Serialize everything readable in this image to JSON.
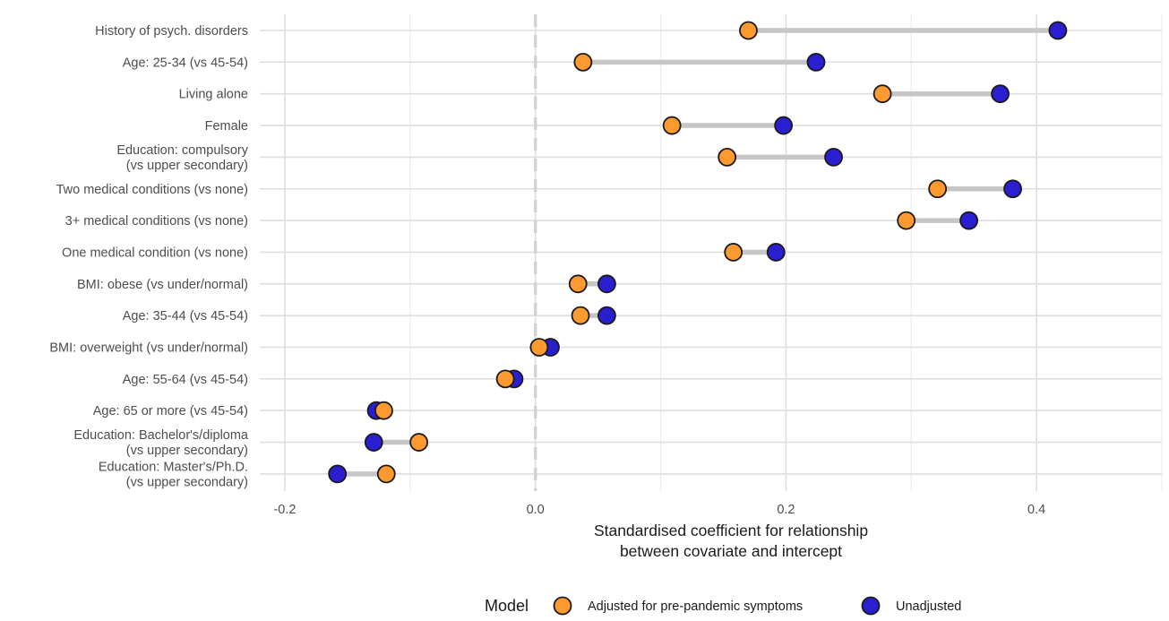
{
  "chart_data": {
    "type": "dumbbell",
    "xlabel": [
      "Standardised coefficient for relationship",
      "between covariate and intercept"
    ],
    "ylabel": "",
    "xlim": [
      -0.22,
      0.5
    ],
    "x_ticks": [
      -0.2,
      0.0,
      0.2,
      0.4
    ],
    "x_tick_labels": [
      "-0.2",
      "0.0",
      "0.2",
      "0.4"
    ],
    "reference_line_x": 0.0,
    "grid": true,
    "categories": [
      [
        "History of psych. disorders"
      ],
      [
        "Age: 25-34 (vs 45-54)"
      ],
      [
        "Living alone"
      ],
      [
        "Female"
      ],
      [
        "Education: compulsory",
        "(vs upper secondary)"
      ],
      [
        "Two medical conditions (vs none)"
      ],
      [
        "3+ medical conditions (vs none)"
      ],
      [
        "One medical condition (vs none)"
      ],
      [
        "BMI: obese (vs under/normal)"
      ],
      [
        "Age: 35-44 (vs 45-54)"
      ],
      [
        "BMI: overweight (vs under/normal)"
      ],
      [
        "Age: 55-64 (vs 45-54)"
      ],
      [
        "Age: 65 or more (vs 45-54)"
      ],
      [
        "Education: Bachelor's/diploma",
        "(vs upper secondary)"
      ],
      [
        "Education: Master's/Ph.D.",
        "(vs upper secondary)"
      ]
    ],
    "series": [
      {
        "name": "Adjusted for pre-pandemic symptoms",
        "color": "#fc9a2f",
        "values": [
          0.17,
          0.038,
          0.277,
          0.109,
          0.153,
          0.321,
          0.296,
          0.158,
          0.034,
          0.036,
          0.003,
          -0.024,
          -0.121,
          -0.093,
          -0.119
        ]
      },
      {
        "name": "Unadjusted",
        "color": "#2a1fd0",
        "values": [
          0.417,
          0.224,
          0.371,
          0.198,
          0.238,
          0.381,
          0.346,
          0.192,
          0.057,
          0.057,
          0.012,
          -0.017,
          -0.127,
          -0.129,
          -0.158
        ]
      }
    ],
    "legend": {
      "title": "Model",
      "position": "bottom"
    }
  }
}
